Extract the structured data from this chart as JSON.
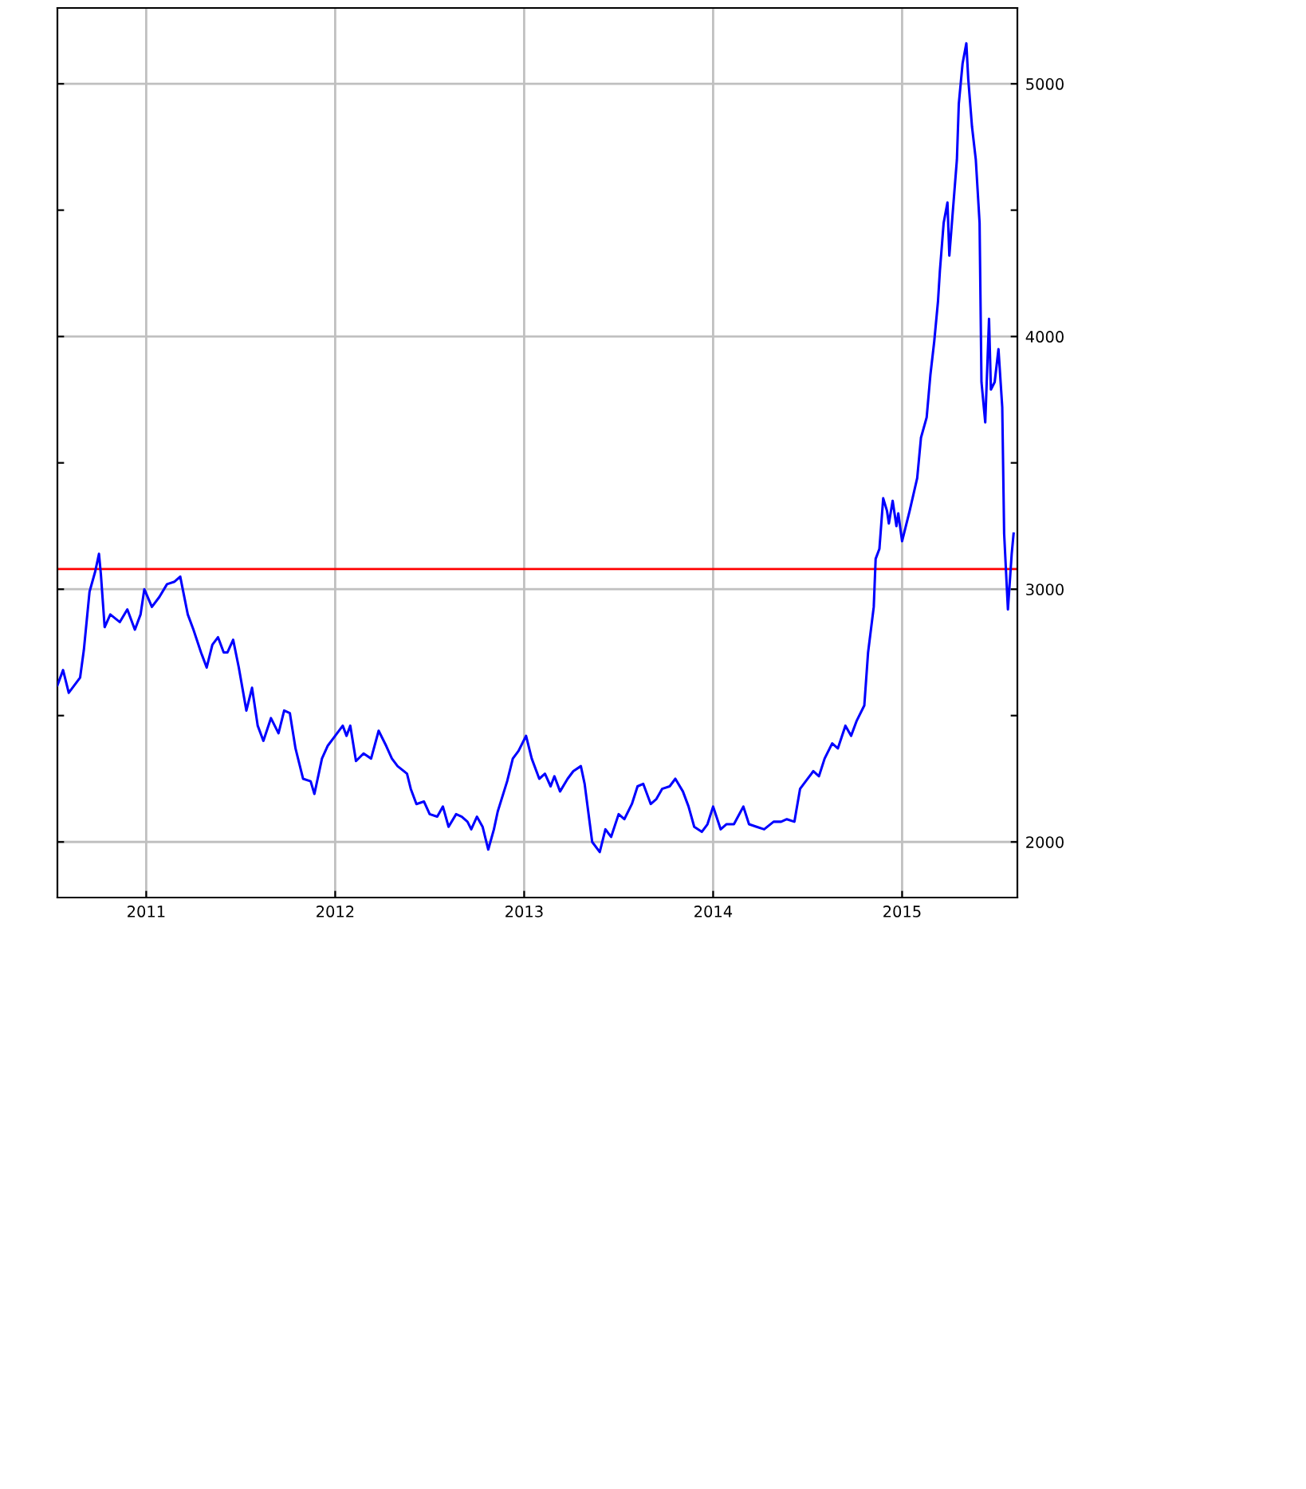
{
  "chart_data": {
    "type": "line",
    "x": [
      2010.53,
      2010.56,
      2010.59,
      2010.65,
      2010.67,
      2010.7,
      2010.73,
      2010.75,
      2010.76,
      2010.78,
      2010.81,
      2010.86,
      2010.9,
      2010.94,
      2010.97,
      2010.99,
      2011.03,
      2011.07,
      2011.11,
      2011.15,
      2011.18,
      2011.22,
      2011.25,
      2011.29,
      2011.32,
      2011.35,
      2011.38,
      2011.41,
      2011.43,
      2011.46,
      2011.49,
      2011.53,
      2011.56,
      2011.59,
      2011.62,
      2011.66,
      2011.7,
      2011.73,
      2011.76,
      2011.79,
      2011.83,
      2011.87,
      2011.89,
      2011.93,
      2011.96,
      2012.0,
      2012.04,
      2012.06,
      2012.08,
      2012.11,
      2012.15,
      2012.19,
      2012.23,
      2012.27,
      2012.3,
      2012.33,
      2012.38,
      2012.4,
      2012.43,
      2012.47,
      2012.5,
      2012.54,
      2012.57,
      2012.6,
      2012.64,
      2012.67,
      2012.7,
      2012.72,
      2012.75,
      2012.78,
      2012.81,
      2012.84,
      2012.86,
      2012.91,
      2012.94,
      2012.97,
      2013.01,
      2013.04,
      2013.08,
      2013.11,
      2013.14,
      2013.16,
      2013.19,
      2013.23,
      2013.26,
      2013.3,
      2013.32,
      2013.36,
      2013.4,
      2013.43,
      2013.46,
      2013.5,
      2013.53,
      2013.57,
      2013.6,
      2013.63,
      2013.67,
      2013.7,
      2013.73,
      2013.77,
      2013.8,
      2013.84,
      2013.87,
      2013.9,
      2013.94,
      2013.97,
      2014.0,
      2014.04,
      2014.07,
      2014.11,
      2014.16,
      2014.19,
      2014.23,
      2014.27,
      2014.32,
      2014.36,
      2014.39,
      2014.43,
      2014.46,
      2014.49,
      2014.53,
      2014.56,
      2014.59,
      2014.63,
      2014.66,
      2014.7,
      2014.73,
      2014.76,
      2014.8,
      2014.82,
      2014.85,
      2014.86,
      2014.88,
      2014.9,
      2014.92,
      2014.93,
      2014.95,
      2014.97,
      2014.98,
      2015.0,
      2015.02,
      2015.04,
      2015.08,
      2015.1,
      2015.13,
      2015.15,
      2015.17,
      2015.19,
      2015.2,
      2015.22,
      2015.24,
      2015.25,
      2015.27,
      2015.29,
      2015.3,
      2015.32,
      2015.34,
      2015.35,
      2015.37,
      2015.39,
      2015.41,
      2015.42,
      2015.44,
      2015.46,
      2015.47,
      2015.49,
      2015.51,
      2015.53,
      2015.54,
      2015.56,
      2015.58,
      2015.59
    ],
    "series": [
      {
        "color": "#0000ff",
        "values": [
          2620,
          2680,
          2590,
          2650,
          2760,
          2990,
          3070,
          3140,
          3060,
          2850,
          2900,
          2870,
          2920,
          2840,
          2900,
          3000,
          2930,
          2970,
          3020,
          3030,
          3050,
          2900,
          2840,
          2750,
          2690,
          2780,
          2810,
          2750,
          2750,
          2800,
          2690,
          2520,
          2610,
          2460,
          2400,
          2490,
          2430,
          2520,
          2510,
          2370,
          2250,
          2240,
          2190,
          2330,
          2380,
          2420,
          2460,
          2420,
          2460,
          2320,
          2350,
          2330,
          2440,
          2380,
          2330,
          2300,
          2270,
          2210,
          2150,
          2160,
          2110,
          2100,
          2140,
          2060,
          2110,
          2100,
          2080,
          2050,
          2100,
          2060,
          1970,
          2050,
          2120,
          2240,
          2330,
          2360,
          2420,
          2330,
          2250,
          2270,
          2220,
          2260,
          2200,
          2250,
          2280,
          2300,
          2230,
          2000,
          1960,
          2050,
          2020,
          2110,
          2090,
          2150,
          2220,
          2230,
          2150,
          2170,
          2210,
          2220,
          2250,
          2200,
          2140,
          2060,
          2040,
          2070,
          2140,
          2050,
          2070,
          2070,
          2140,
          2070,
          2060,
          2050,
          2080,
          2080,
          2090,
          2080,
          2210,
          2240,
          2280,
          2260,
          2330,
          2390,
          2370,
          2460,
          2420,
          2480,
          2540,
          2750,
          2930,
          3120,
          3160,
          3360,
          3310,
          3260,
          3350,
          3250,
          3300,
          3190,
          3250,
          3310,
          3440,
          3600,
          3680,
          3850,
          3980,
          4140,
          4260,
          4450,
          4530,
          4320,
          4510,
          4700,
          4920,
          5080,
          5160,
          5020,
          4830,
          4700,
          4450,
          3820,
          3660,
          4070,
          3790,
          3820,
          3950,
          3720,
          3220,
          2920,
          3140,
          3220
        ]
      }
    ],
    "xlim": [
      2010.53,
      2015.61
    ],
    "xticks": [
      2011,
      2012,
      2013,
      2014,
      2015
    ],
    "ylim": [
      1780,
      5300
    ],
    "yticks": [
      {
        "value": 2000,
        "label": "2000"
      },
      {
        "value": 2500,
        "label": null
      },
      {
        "value": 3000,
        "label": "3000"
      },
      {
        "value": 3500,
        "label": null
      },
      {
        "value": 4000,
        "label": "4000"
      },
      {
        "value": 4500,
        "label": null
      },
      {
        "value": 5000,
        "label": "5000"
      }
    ],
    "ref_lines": [
      {
        "axis": "y",
        "value": 3080,
        "color": "#ff0000"
      }
    ],
    "grid": true
  }
}
